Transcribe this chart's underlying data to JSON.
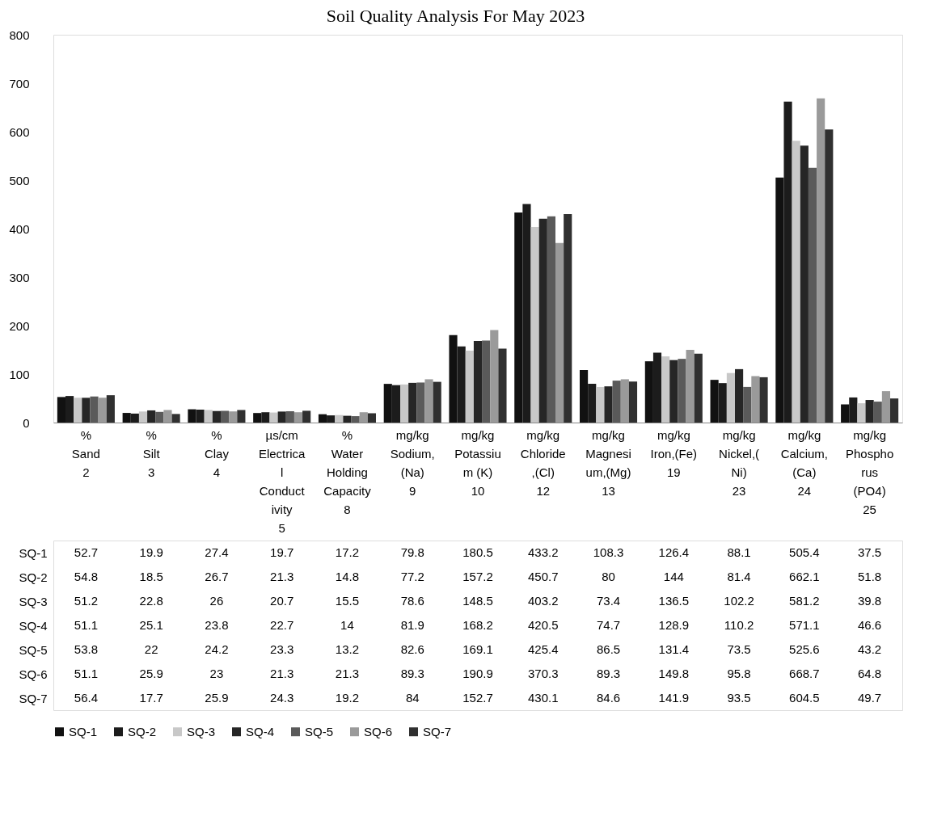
{
  "chart_data": {
    "type": "bar",
    "title": "Soil Quality Analysis For May 2023",
    "categories": [
      "%\nSand\n2",
      "%\nSilt\n3",
      "%\nClay\n4",
      "µs/cm\nElectrica\nl\nConduct\nivity\n5",
      "%\nWater\nHolding\nCapacity\n8",
      "mg/kg\nSodium,\n(Na)\n9",
      "mg/kg\nPotassiu\nm (K)\n10",
      "mg/kg\nChloride\n,(Cl)\n12",
      "mg/kg\nMagnesi\num,(Mg)\n13",
      "mg/kg\nIron,(Fe)\n19",
      "mg/kg\nNickel,(\nNi)\n23",
      "mg/kg\nCalcium,\n(Ca)\n24",
      "mg/kg\nPhospho\nrus\n(PO4)\n25"
    ],
    "series": [
      {
        "name": "SQ-1",
        "color": "#111111",
        "values": [
          52.7,
          19.9,
          27.4,
          19.7,
          17.2,
          79.8,
          180.5,
          433.2,
          108.3,
          126.4,
          88.1,
          505.4,
          37.5
        ]
      },
      {
        "name": "SQ-2",
        "color": "#1c1c1c",
        "values": [
          54.8,
          18.5,
          26.7,
          21.3,
          14.8,
          77.2,
          157.2,
          450.7,
          80,
          144,
          81.4,
          662.1,
          51.8
        ]
      },
      {
        "name": "SQ-3",
        "color": "#c8c8c8",
        "values": [
          51.2,
          22.8,
          26,
          20.7,
          15.5,
          78.6,
          148.5,
          403.2,
          73.4,
          136.5,
          102.2,
          581.2,
          39.8
        ]
      },
      {
        "name": "SQ-4",
        "color": "#262626",
        "values": [
          51.1,
          25.1,
          23.8,
          22.7,
          14,
          81.9,
          168.2,
          420.5,
          74.7,
          128.9,
          110.2,
          571.1,
          46.6
        ]
      },
      {
        "name": "SQ-5",
        "color": "#5a5a5a",
        "values": [
          53.8,
          22,
          24.2,
          23.3,
          13.2,
          82.6,
          169.1,
          425.4,
          86.5,
          131.4,
          73.5,
          525.6,
          43.2
        ]
      },
      {
        "name": "SQ-6",
        "color": "#9a9a9a",
        "values": [
          51.1,
          25.9,
          23,
          21.3,
          21.3,
          89.3,
          190.9,
          370.3,
          89.3,
          149.8,
          95.8,
          668.7,
          64.8
        ]
      },
      {
        "name": "SQ-7",
        "color": "#303030",
        "values": [
          56.4,
          17.7,
          25.9,
          24.3,
          19.2,
          84,
          152.7,
          430.1,
          84.6,
          141.9,
          93.5,
          604.5,
          49.7
        ]
      }
    ],
    "ylim": [
      0,
      800
    ],
    "yticks": [
      0,
      100,
      200,
      300,
      400,
      500,
      600,
      700,
      800
    ],
    "grid": false,
    "legend": "bottom",
    "data_labels": true
  }
}
